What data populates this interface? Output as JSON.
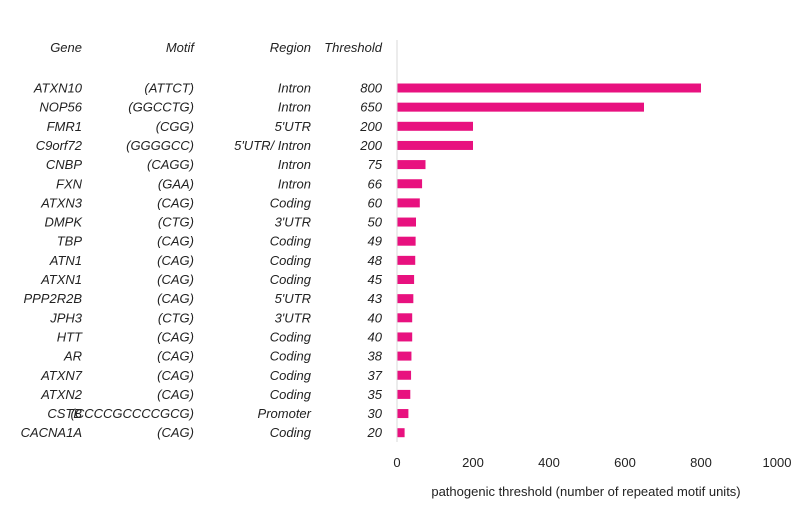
{
  "chart_data": {
    "type": "bar",
    "orientation": "horizontal",
    "columns": {
      "gene": "Gene",
      "motif": "Motif",
      "region": "Region",
      "threshold": "Threshold"
    },
    "rows": [
      {
        "gene": "ATXN10",
        "motif": "(ATTCT)",
        "region": "Intron",
        "threshold": "800",
        "value": 800
      },
      {
        "gene": "NOP56",
        "motif": "(GGCCTG)",
        "region": "Intron",
        "threshold": "650",
        "value": 650
      },
      {
        "gene": "FMR1",
        "motif": "(CGG)",
        "region": "5'UTR",
        "threshold": "200",
        "value": 200
      },
      {
        "gene": "C9orf72",
        "motif": "(GGGGCC)",
        "region": "5'UTR/ Intron",
        "threshold": "200",
        "value": 200
      },
      {
        "gene": "CNBP",
        "motif": "(CAGG)",
        "region": "Intron",
        "threshold": "75",
        "value": 75
      },
      {
        "gene": "FXN",
        "motif": "(GAA)",
        "region": "Intron",
        "threshold": "66",
        "value": 66
      },
      {
        "gene": "ATXN3",
        "motif": "(CAG)",
        "region": "Coding",
        "threshold": "60",
        "value": 60
      },
      {
        "gene": "DMPK",
        "motif": "(CTG)",
        "region": "3'UTR",
        "threshold": "50",
        "value": 50
      },
      {
        "gene": "TBP",
        "motif": "(CAG)",
        "region": "Coding",
        "threshold": "49",
        "value": 49
      },
      {
        "gene": "ATN1",
        "motif": "(CAG)",
        "region": "Coding",
        "threshold": "48",
        "value": 48
      },
      {
        "gene": "ATXN1",
        "motif": "(CAG)",
        "region": "Coding",
        "threshold": "45",
        "value": 45
      },
      {
        "gene": "PPP2R2B",
        "motif": "(CAG)",
        "region": "5'UTR",
        "threshold": "43",
        "value": 43
      },
      {
        "gene": "JPH3",
        "motif": "(CTG)",
        "region": "3'UTR",
        "threshold": "40",
        "value": 40
      },
      {
        "gene": "HTT",
        "motif": "(CAG)",
        "region": "Coding",
        "threshold": "40",
        "value": 40
      },
      {
        "gene": "AR",
        "motif": "(CAG)",
        "region": "Coding",
        "threshold": "38",
        "value": 38
      },
      {
        "gene": "ATXN7",
        "motif": "(CAG)",
        "region": "Coding",
        "threshold": "37",
        "value": 37
      },
      {
        "gene": "ATXN2",
        "motif": "(CAG)",
        "region": "Coding",
        "threshold": "35",
        "value": 35
      },
      {
        "gene": "CSTB",
        "motif": "(CCCCGCCCCGCG)",
        "region": "Promoter",
        "threshold": "30",
        "value": 30
      },
      {
        "gene": "CACNA1A",
        "motif": "(CAG)",
        "region": "Coding",
        "threshold": "20",
        "value": 20
      }
    ],
    "xlim": [
      0,
      1000
    ],
    "xticks": [
      "0",
      "200",
      "400",
      "600",
      "800",
      "1000"
    ],
    "xtick_values": [
      0,
      200,
      400,
      600,
      800,
      1000
    ],
    "xlabel": "pathogenic threshold (number of repeated motif units)",
    "bar_color": "#e8117f",
    "axis_color": "#d9d9d9",
    "grid": false
  }
}
